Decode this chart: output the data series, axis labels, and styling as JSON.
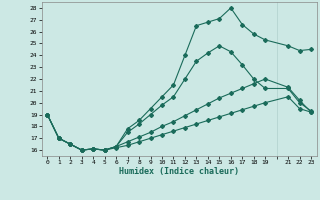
{
  "xlabel": "Humidex (Indice chaleur)",
  "bg_color": "#cce8e4",
  "grid_color": "#b0d0cc",
  "line_color": "#1a6b5a",
  "xlim": [
    -0.5,
    23.5
  ],
  "ylim": [
    15.5,
    28.5
  ],
  "xticks": [
    0,
    1,
    2,
    3,
    4,
    5,
    6,
    7,
    8,
    9,
    10,
    11,
    12,
    13,
    14,
    15,
    16,
    17,
    18,
    19,
    21,
    22,
    23
  ],
  "yticks": [
    16,
    17,
    18,
    19,
    20,
    21,
    22,
    23,
    24,
    25,
    26,
    27,
    28
  ],
  "line1_x": [
    0,
    1,
    2,
    3,
    4,
    5,
    6,
    7,
    8,
    9,
    10,
    11,
    12,
    13,
    14,
    15,
    16,
    17,
    18,
    19,
    21,
    22,
    23
  ],
  "line1_y": [
    19.0,
    17.0,
    16.5,
    16.0,
    16.1,
    16.0,
    16.3,
    17.8,
    18.5,
    19.5,
    20.5,
    21.5,
    24.0,
    26.5,
    26.8,
    27.1,
    28.0,
    26.6,
    25.8,
    25.3,
    24.8,
    24.4,
    24.5
  ],
  "line2_x": [
    0,
    1,
    2,
    3,
    4,
    5,
    6,
    7,
    8,
    9,
    10,
    11,
    12,
    13,
    14,
    15,
    16,
    17,
    18,
    19,
    21,
    22,
    23
  ],
  "line2_y": [
    19.0,
    17.0,
    16.5,
    16.0,
    16.1,
    16.0,
    16.3,
    17.5,
    18.2,
    19.0,
    19.8,
    20.5,
    22.0,
    23.5,
    24.2,
    24.8,
    24.3,
    23.2,
    22.0,
    21.2,
    21.2,
    20.0,
    19.3
  ],
  "line3_x": [
    0,
    1,
    2,
    3,
    4,
    5,
    6,
    7,
    8,
    9,
    10,
    11,
    12,
    13,
    14,
    15,
    16,
    17,
    18,
    19,
    21,
    22,
    23
  ],
  "line3_y": [
    19.0,
    17.0,
    16.5,
    16.0,
    16.1,
    16.0,
    16.3,
    16.7,
    17.1,
    17.5,
    18.0,
    18.4,
    18.9,
    19.4,
    19.9,
    20.4,
    20.8,
    21.2,
    21.6,
    22.0,
    21.3,
    20.2,
    19.2
  ],
  "line4_x": [
    0,
    1,
    2,
    3,
    4,
    5,
    6,
    7,
    8,
    9,
    10,
    11,
    12,
    13,
    14,
    15,
    16,
    17,
    18,
    19,
    21,
    22,
    23
  ],
  "line4_y": [
    19.0,
    17.0,
    16.5,
    16.0,
    16.1,
    16.0,
    16.2,
    16.4,
    16.7,
    17.0,
    17.3,
    17.6,
    17.9,
    18.2,
    18.5,
    18.8,
    19.1,
    19.4,
    19.7,
    20.0,
    20.5,
    19.5,
    19.2
  ]
}
